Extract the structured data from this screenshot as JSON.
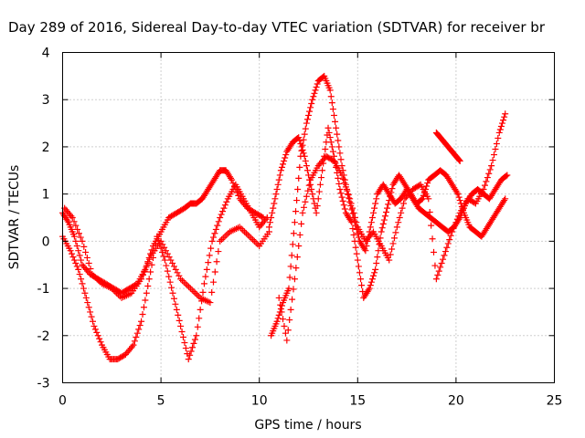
{
  "chart_data": {
    "type": "scatter",
    "title": "Day 289 of 2016, Sidereal Day-to-day VTEC variation (SDTVAR) for receiver br",
    "xlabel": "GPS time / hours",
    "ylabel": "SDTVAR / TECUs",
    "xlim": [
      0,
      25
    ],
    "ylim": [
      -3,
      4
    ],
    "x_ticks": [
      "0",
      "5",
      "10",
      "15",
      "20",
      "25"
    ],
    "y_ticks": [
      "-3",
      "-2",
      "-1",
      "0",
      "1",
      "2",
      "3",
      "4"
    ],
    "grid": true,
    "legend": "none",
    "marker": "plus",
    "color": "#ff0000",
    "series": [
      {
        "x": [
          0.0,
          0.3,
          0.6,
          1.0,
          1.4,
          1.8,
          2.2,
          2.6,
          3.0,
          3.4,
          3.8,
          4.2,
          4.6,
          5.0,
          5.4,
          5.8,
          6.2,
          6.5,
          6.8,
          7.1,
          7.4,
          7.7,
          8.0,
          8.3,
          8.6,
          9.0,
          9.4,
          9.8,
          10.2
        ],
        "y": [
          0.6,
          0.4,
          0.1,
          -0.5,
          -0.7,
          -0.8,
          -0.9,
          -1.0,
          -1.1,
          -1.0,
          -0.9,
          -0.6,
          -0.1,
          0.2,
          0.5,
          0.6,
          0.7,
          0.8,
          0.8,
          0.9,
          1.1,
          1.3,
          1.5,
          1.5,
          1.3,
          0.9,
          0.7,
          0.6,
          0.5
        ]
      },
      {
        "x": [
          0.0,
          0.4,
          0.8,
          1.2,
          1.6,
          2.0,
          2.4,
          2.8,
          3.2,
          3.6,
          4.0,
          4.4,
          4.8,
          5.2,
          5.6,
          6.0,
          6.4,
          6.8,
          7.2,
          7.6,
          8.0,
          8.4,
          8.8,
          9.2,
          9.6,
          10.0,
          10.4
        ],
        "y": [
          0.1,
          -0.2,
          -0.6,
          -1.2,
          -1.8,
          -2.2,
          -2.5,
          -2.5,
          -2.4,
          -2.2,
          -1.7,
          -0.8,
          0.1,
          -0.4,
          -1.1,
          -1.8,
          -2.5,
          -2.0,
          -0.9,
          0.0,
          0.5,
          0.9,
          1.2,
          0.9,
          0.6,
          0.3,
          0.5
        ]
      },
      {
        "x": [
          0.1,
          0.5,
          1.0,
          1.5,
          2.0,
          2.5,
          3.0,
          3.5,
          4.0,
          4.5,
          5.0,
          5.5,
          6.0,
          6.5,
          7.0,
          7.5,
          8.0,
          8.5,
          9.0,
          9.5,
          10.0,
          10.5
        ],
        "y": [
          0.7,
          0.5,
          0.0,
          -0.7,
          -0.9,
          -1.0,
          -1.2,
          -1.1,
          -0.8,
          -0.3,
          0.0,
          -0.4,
          -0.8,
          -1.0,
          -1.2,
          -1.3,
          0.0,
          0.2,
          0.3,
          0.1,
          -0.1,
          0.2
        ]
      },
      {
        "x": [
          10.6,
          10.9,
          11.2,
          11.5,
          11.8,
          12.1,
          12.4,
          12.7,
          13.0,
          13.3,
          13.6,
          13.9,
          14.2,
          14.5,
          14.8,
          15.1,
          15.4,
          15.7,
          16.0,
          16.3,
          16.6,
          16.9,
          17.2,
          17.5,
          17.8,
          18.1,
          18.4,
          18.7,
          19.0,
          19.3,
          19.6,
          19.9,
          20.2,
          20.5,
          20.8,
          21.1,
          21.4,
          21.7,
          22.0,
          22.3,
          22.6
        ],
        "y": [
          -2.0,
          -1.7,
          -1.3,
          -1.0,
          0.4,
          1.8,
          2.5,
          3.0,
          3.4,
          3.5,
          3.2,
          2.4,
          1.6,
          1.0,
          0.5,
          0.0,
          -0.2,
          0.4,
          1.0,
          1.2,
          1.0,
          0.8,
          0.9,
          1.1,
          0.9,
          0.7,
          0.6,
          0.5,
          0.4,
          0.3,
          0.2,
          0.3,
          0.5,
          0.8,
          1.0,
          1.1,
          1.0,
          0.9,
          1.1,
          1.3,
          1.4
        ]
      },
      {
        "x": [
          10.5,
          10.8,
          11.1,
          11.4,
          11.7,
          12.0,
          12.3,
          12.6,
          12.9,
          13.2,
          13.5,
          13.8,
          14.1,
          14.4,
          14.7,
          15.0,
          15.3,
          15.6,
          15.9,
          16.2,
          16.5,
          16.8,
          17.1,
          17.4,
          17.7,
          18.0,
          18.3,
          18.6,
          18.9,
          19.2,
          19.5,
          19.8,
          20.1,
          20.4,
          20.7,
          21.0,
          21.3,
          21.6,
          21.9,
          22.2,
          22.5
        ],
        "y": [
          0.3,
          0.9,
          1.5,
          1.9,
          2.1,
          2.2,
          1.8,
          1.2,
          0.6,
          1.5,
          2.4,
          1.8,
          1.1,
          0.6,
          0.4,
          -0.4,
          -1.2,
          -1.0,
          -0.6,
          0.2,
          0.7,
          1.2,
          1.4,
          1.2,
          1.0,
          0.8,
          0.9,
          1.3,
          1.4,
          1.5,
          1.4,
          1.2,
          1.0,
          0.6,
          0.3,
          0.2,
          0.1,
          0.3,
          0.5,
          0.7,
          0.9
        ]
      },
      {
        "x": [
          11.0,
          11.4,
          11.8,
          12.2,
          12.6,
          13.0,
          13.4,
          13.8,
          14.2,
          14.6,
          15.0,
          15.4,
          15.8,
          16.2,
          16.6,
          17.0,
          17.4,
          17.8,
          18.2,
          18.6,
          19.0,
          19.4,
          19.8,
          20.2,
          20.6,
          21.0,
          21.4,
          21.8,
          22.2,
          22.5
        ],
        "y": [
          -1.2,
          -2.1,
          -0.8,
          0.6,
          1.3,
          1.6,
          1.8,
          1.7,
          1.4,
          0.9,
          0.3,
          0.0,
          0.2,
          -0.1,
          -0.4,
          0.3,
          0.9,
          1.1,
          1.2,
          0.9,
          -0.8,
          -0.3,
          0.2,
          0.6,
          0.9,
          0.8,
          1.1,
          1.6,
          2.3,
          2.7
        ]
      },
      {
        "x": [
          19.0,
          19.2,
          19.4,
          19.6,
          19.8,
          20.0,
          20.2
        ],
        "y": [
          2.3,
          2.2,
          2.1,
          2.0,
          1.9,
          1.8,
          1.7
        ]
      }
    ]
  }
}
